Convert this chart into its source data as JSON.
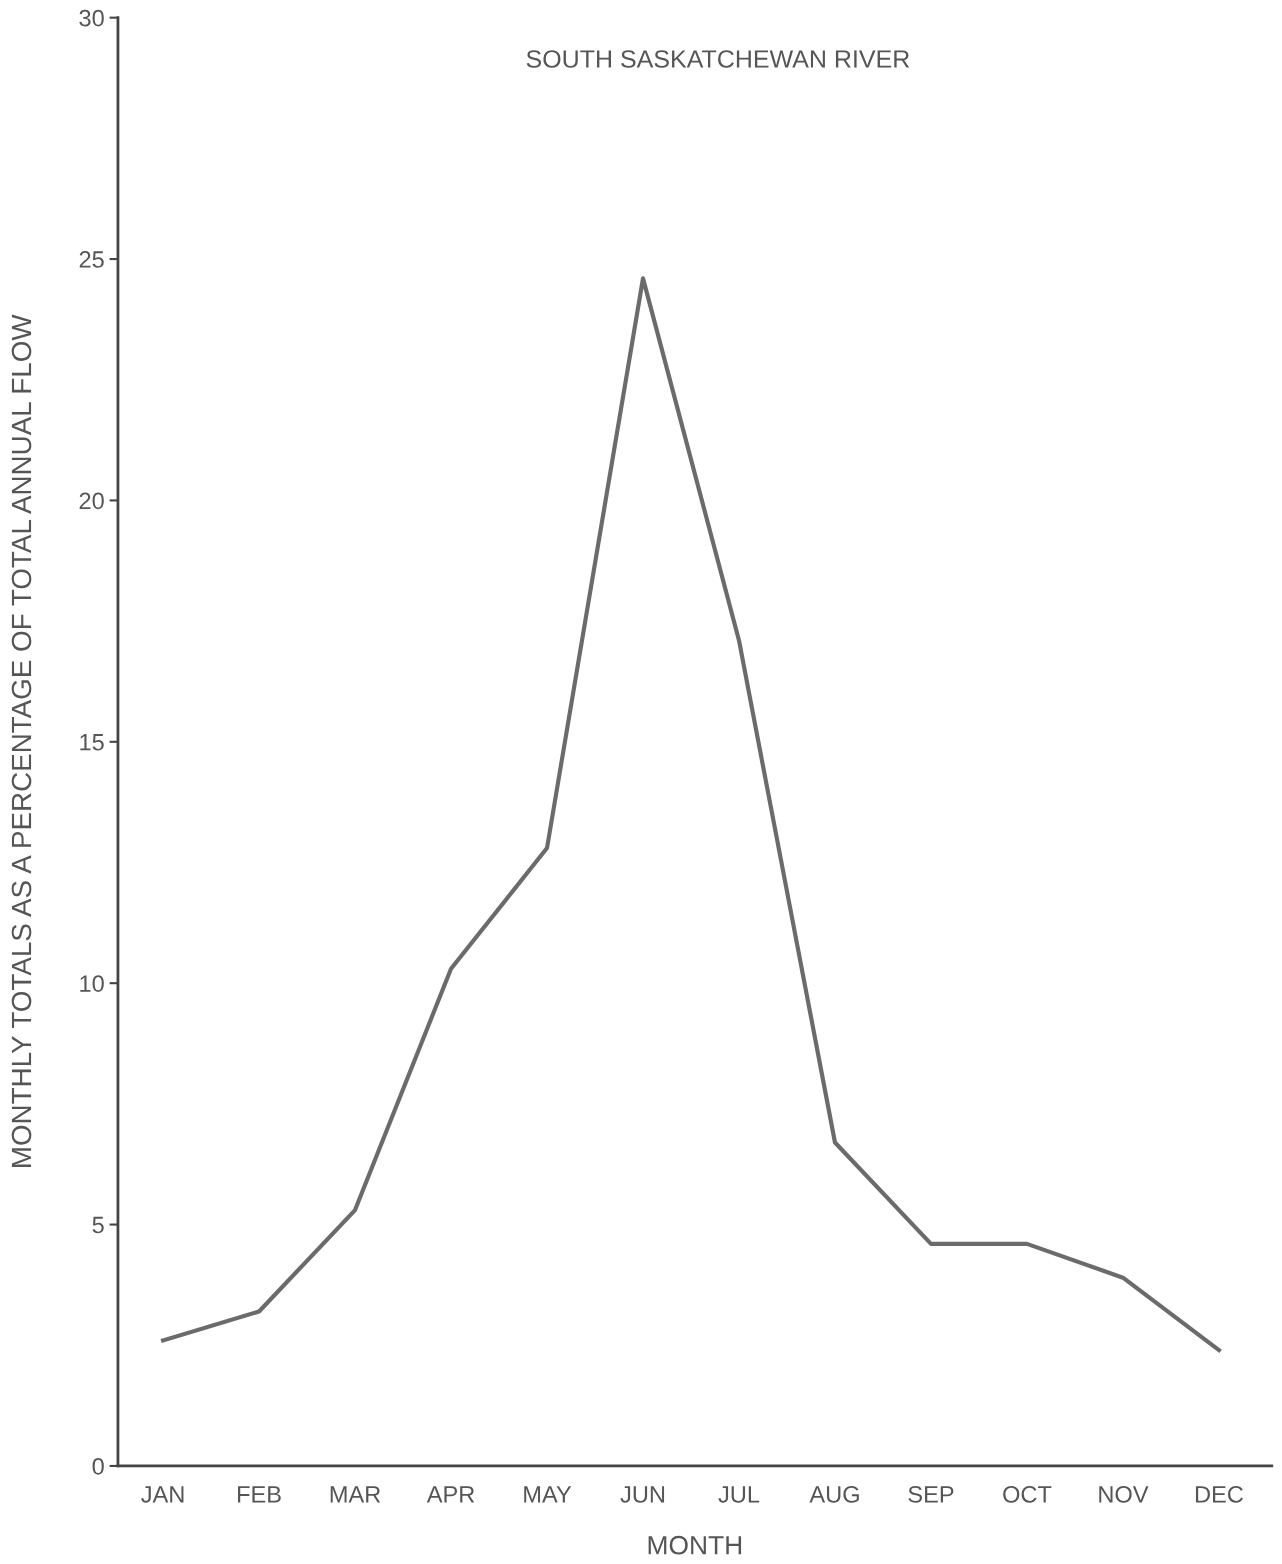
{
  "chart_data": {
    "type": "line",
    "title": "SOUTH SASKATCHEWAN RIVER",
    "xlabel": "MONTH",
    "ylabel": "MONTHLY TOTALS AS A PERCENTAGE OF TOTAL ANNUAL FLOW",
    "categories": [
      "JAN",
      "FEB",
      "MAR",
      "APR",
      "MAY",
      "JUN",
      "JUL",
      "AUG",
      "SEP",
      "OCT",
      "NOV",
      "DEC"
    ],
    "series": [
      {
        "color": "#6b6b6b",
        "values": [
          2.6,
          3.2,
          5.3,
          10.3,
          12.8,
          24.6,
          17.1,
          6.7,
          4.6,
          4.6,
          3.9,
          2.4
        ]
      }
    ],
    "ylim": [
      0,
      30
    ],
    "yticks": [
      0,
      5,
      10,
      15,
      20,
      25,
      30
    ],
    "grid": false,
    "legend": false,
    "marker": "none",
    "line_style": "solid"
  }
}
